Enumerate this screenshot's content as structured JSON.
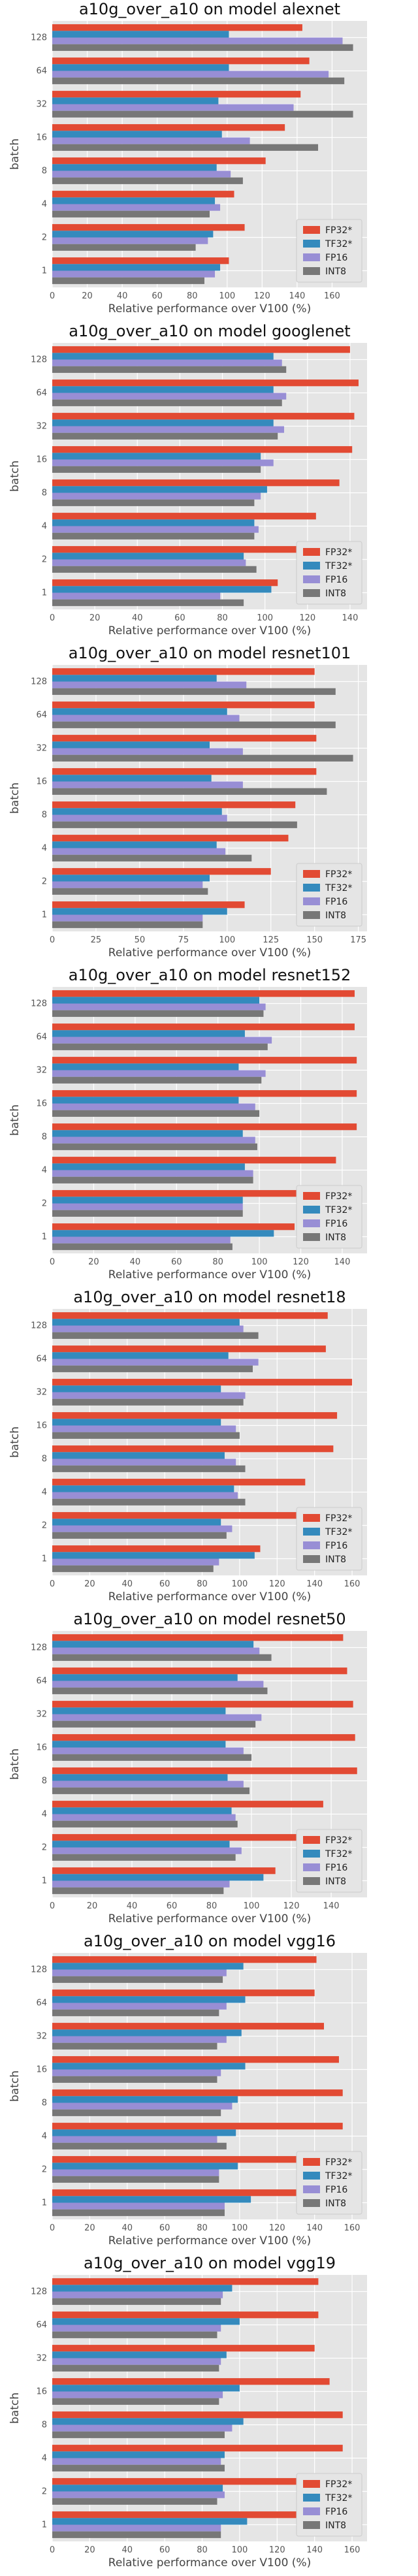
{
  "figure": {
    "xlabel": "Relative performance over V100 (%)",
    "ylabel": "batch",
    "batches": [
      "1",
      "2",
      "4",
      "8",
      "16",
      "32",
      "64",
      "128"
    ],
    "legend": [
      "FP32*",
      "TF32*",
      "FP16",
      "INT8"
    ],
    "legend_position": "lower right",
    "colors": {
      "FP32*": "#E24A33",
      "TF32*": "#348ABD",
      "FP16": "#988ED5",
      "INT8": "#777777"
    },
    "style": "ggplot",
    "grid": true
  },
  "chart_data": [
    {
      "type": "bar",
      "orientation": "horizontal",
      "title": "a10g_over_a10 on model alexnet",
      "categories": [
        "1",
        "2",
        "4",
        "8",
        "16",
        "32",
        "64",
        "128"
      ],
      "xlim": [
        0,
        180
      ],
      "xticks": [
        0,
        20,
        40,
        60,
        80,
        100,
        120,
        140,
        160
      ],
      "series": [
        {
          "name": "FP32*",
          "values": [
            101,
            110,
            104,
            122,
            133,
            142,
            147,
            143
          ]
        },
        {
          "name": "TF32*",
          "values": [
            96,
            92,
            93,
            94,
            97,
            95,
            101,
            101
          ]
        },
        {
          "name": "FP16",
          "values": [
            93,
            89,
            96,
            102,
            113,
            138,
            158,
            166
          ]
        },
        {
          "name": "INT8",
          "values": [
            87,
            82,
            90,
            109,
            152,
            172,
            167,
            172
          ]
        }
      ]
    },
    {
      "type": "bar",
      "orientation": "horizontal",
      "title": "a10g_over_a10 on model googlenet",
      "categories": [
        "1",
        "2",
        "4",
        "8",
        "16",
        "32",
        "64",
        "128"
      ],
      "xlim": [
        0,
        148
      ],
      "xticks": [
        0,
        20,
        40,
        60,
        80,
        100,
        120,
        140
      ],
      "series": [
        {
          "name": "FP32*",
          "values": [
            106,
            117,
            124,
            135,
            141,
            142,
            144,
            140
          ]
        },
        {
          "name": "TF32*",
          "values": [
            103,
            90,
            95,
            101,
            98,
            104,
            104,
            104
          ]
        },
        {
          "name": "FP16",
          "values": [
            79,
            91,
            97,
            98,
            104,
            109,
            110,
            108
          ]
        },
        {
          "name": "INT8",
          "values": [
            90,
            96,
            95,
            95,
            98,
            106,
            108,
            110
          ]
        }
      ]
    },
    {
      "type": "bar",
      "orientation": "horizontal",
      "title": "a10g_over_a10 on model resnet101",
      "categories": [
        "1",
        "2",
        "4",
        "8",
        "16",
        "32",
        "64",
        "128"
      ],
      "xlim": [
        0,
        180
      ],
      "xticks": [
        0,
        25,
        50,
        75,
        100,
        125,
        150,
        175
      ],
      "series": [
        {
          "name": "FP32*",
          "values": [
            110,
            125,
            135,
            139,
            151,
            151,
            150,
            150
          ]
        },
        {
          "name": "TF32*",
          "values": [
            100,
            90,
            94,
            97,
            91,
            90,
            100,
            94
          ]
        },
        {
          "name": "FP16",
          "values": [
            86,
            86,
            99,
            100,
            109,
            109,
            107,
            111
          ]
        },
        {
          "name": "INT8",
          "values": [
            86,
            89,
            114,
            140,
            157,
            172,
            162,
            162
          ]
        }
      ]
    },
    {
      "type": "bar",
      "orientation": "horizontal",
      "title": "a10g_over_a10 on model resnet152",
      "categories": [
        "1",
        "2",
        "4",
        "8",
        "16",
        "32",
        "64",
        "128"
      ],
      "xlim": [
        0,
        152
      ],
      "xticks": [
        0,
        20,
        40,
        60,
        80,
        100,
        120,
        140
      ],
      "series": [
        {
          "name": "FP32*",
          "values": [
            117,
            130,
            137,
            147,
            147,
            147,
            146,
            146
          ]
        },
        {
          "name": "TF32*",
          "values": [
            107,
            92,
            93,
            92,
            90,
            90,
            93,
            100
          ]
        },
        {
          "name": "FP16",
          "values": [
            86,
            92,
            97,
            98,
            98,
            103,
            106,
            103
          ]
        },
        {
          "name": "INT8",
          "values": [
            87,
            92,
            97,
            99,
            100,
            101,
            104,
            102
          ]
        }
      ]
    },
    {
      "type": "bar",
      "orientation": "horizontal",
      "title": "a10g_over_a10 on model resnet18",
      "categories": [
        "1",
        "2",
        "4",
        "8",
        "16",
        "32",
        "64",
        "128"
      ],
      "xlim": [
        0,
        168
      ],
      "xticks": [
        0,
        20,
        40,
        60,
        80,
        100,
        120,
        140,
        160
      ],
      "series": [
        {
          "name": "FP32*",
          "values": [
            111,
            134,
            135,
            150,
            152,
            160,
            146,
            147
          ]
        },
        {
          "name": "TF32*",
          "values": [
            108,
            90,
            97,
            92,
            90,
            90,
            94,
            100
          ]
        },
        {
          "name": "FP16",
          "values": [
            89,
            96,
            99,
            98,
            98,
            103,
            110,
            102
          ]
        },
        {
          "name": "INT8",
          "values": [
            86,
            93,
            103,
            103,
            100,
            102,
            107,
            110
          ]
        }
      ]
    },
    {
      "type": "bar",
      "orientation": "horizontal",
      "title": "a10g_over_a10 on model resnet50",
      "categories": [
        "1",
        "2",
        "4",
        "8",
        "16",
        "32",
        "64",
        "128"
      ],
      "xlim": [
        0,
        158
      ],
      "xticks": [
        0,
        20,
        40,
        60,
        80,
        100,
        120,
        140
      ],
      "series": [
        {
          "name": "FP32*",
          "values": [
            112,
            127,
            136,
            153,
            152,
            151,
            148,
            146
          ]
        },
        {
          "name": "TF32*",
          "values": [
            106,
            89,
            90,
            88,
            87,
            87,
            93,
            101
          ]
        },
        {
          "name": "FP16",
          "values": [
            89,
            95,
            92,
            96,
            96,
            105,
            106,
            104
          ]
        },
        {
          "name": "INT8",
          "values": [
            86,
            92,
            93,
            99,
            100,
            102,
            108,
            110
          ]
        }
      ]
    },
    {
      "type": "bar",
      "orientation": "horizontal",
      "title": "a10g_over_a10 on model vgg16",
      "categories": [
        "1",
        "2",
        "4",
        "8",
        "16",
        "32",
        "64",
        "128"
      ],
      "xlim": [
        0,
        168
      ],
      "xticks": [
        0,
        20,
        40,
        60,
        80,
        100,
        120,
        140,
        160
      ],
      "series": [
        {
          "name": "FP32*",
          "values": [
            140,
            150,
            155,
            155,
            153,
            145,
            140,
            141
          ]
        },
        {
          "name": "TF32*",
          "values": [
            106,
            99,
            98,
            99,
            103,
            101,
            103,
            102
          ]
        },
        {
          "name": "FP16",
          "values": [
            92,
            89,
            88,
            96,
            90,
            93,
            93,
            93
          ]
        },
        {
          "name": "INT8",
          "values": [
            92,
            89,
            93,
            90,
            88,
            88,
            89,
            91
          ]
        }
      ]
    },
    {
      "type": "bar",
      "orientation": "horizontal",
      "title": "a10g_over_a10 on model vgg19",
      "categories": [
        "1",
        "2",
        "4",
        "8",
        "16",
        "32",
        "64",
        "128"
      ],
      "xlim": [
        0,
        168
      ],
      "xticks": [
        0,
        20,
        40,
        60,
        80,
        100,
        120,
        140,
        160
      ],
      "series": [
        {
          "name": "FP32*",
          "values": [
            143,
            150,
            155,
            155,
            148,
            140,
            142,
            142
          ]
        },
        {
          "name": "TF32*",
          "values": [
            104,
            91,
            92,
            102,
            100,
            93,
            100,
            96
          ]
        },
        {
          "name": "FP16",
          "values": [
            90,
            92,
            90,
            96,
            91,
            90,
            90,
            91
          ]
        },
        {
          "name": "INT8",
          "values": [
            90,
            88,
            92,
            92,
            89,
            89,
            88,
            90
          ]
        }
      ]
    }
  ]
}
